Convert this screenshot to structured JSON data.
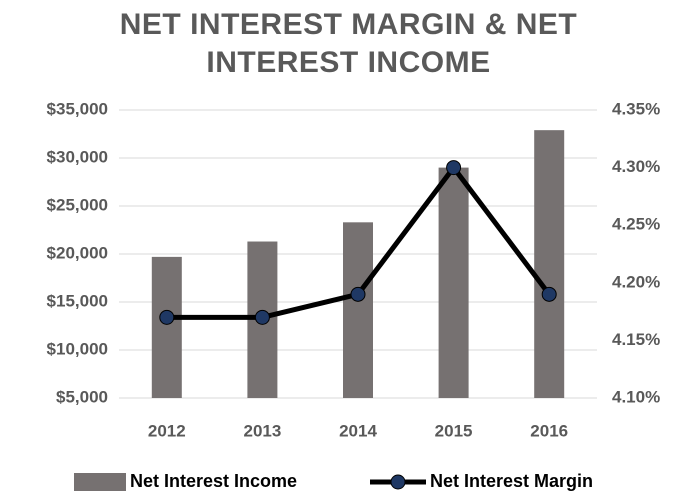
{
  "chart_data": {
    "type": "bar_line",
    "title": "NET INTEREST MARGIN & NET INTEREST INCOME",
    "categories": [
      "2012",
      "2013",
      "2014",
      "2015",
      "2016"
    ],
    "series": [
      {
        "name": "Net Interest Income",
        "type": "bar",
        "color": "#767171",
        "values": [
          19700,
          21300,
          23300,
          29000,
          32900
        ]
      },
      {
        "name": "Net Interest Margin",
        "type": "line",
        "axis": "y2",
        "color": "#000000",
        "marker_color": "#1f3864",
        "values": [
          4.17,
          4.17,
          4.19,
          4.3,
          4.19
        ]
      }
    ],
    "ylim": [
      5000,
      35000
    ],
    "yticks": [
      {
        "value": 5000,
        "label": "$5,000"
      },
      {
        "value": 10000,
        "label": "$10,000"
      },
      {
        "value": 15000,
        "label": "$15,000"
      },
      {
        "value": 20000,
        "label": "$20,000"
      },
      {
        "value": 25000,
        "label": "$25,000"
      },
      {
        "value": 30000,
        "label": "$30,000"
      },
      {
        "value": 35000,
        "label": "$35,000"
      }
    ],
    "y2lim": [
      4.1,
      4.35
    ],
    "y2ticks": [
      {
        "value": 4.1,
        "label": "4.10%"
      },
      {
        "value": 4.15,
        "label": "4.15%"
      },
      {
        "value": 4.2,
        "label": "4.20%"
      },
      {
        "value": 4.25,
        "label": "4.25%"
      },
      {
        "value": 4.3,
        "label": "4.30%"
      },
      {
        "value": 4.35,
        "label": "4.35%"
      }
    ],
    "grid": true,
    "legend": "bottom"
  }
}
